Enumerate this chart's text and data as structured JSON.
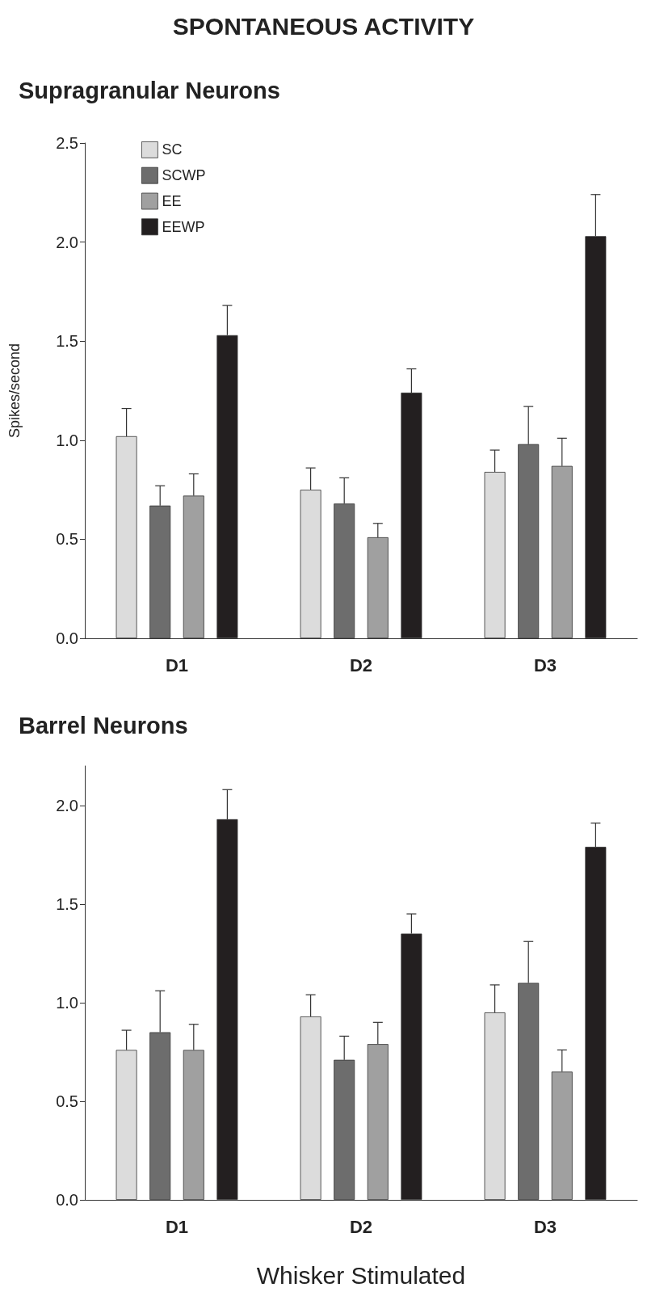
{
  "chart_data": [
    {
      "type": "bar",
      "title": "SPONTANEOUS ACTIVITY",
      "subtitle": "Supragranular Neurons",
      "ylabel": "Spikes/second",
      "categories": [
        "D1",
        "D2",
        "D3"
      ],
      "series": [
        {
          "name": "SC",
          "color": "#dcdcdc",
          "values": [
            1.02,
            0.75,
            0.84
          ],
          "errors": [
            [
              1.02,
              1.16
            ],
            [
              0.75,
              0.86
            ],
            [
              0.84,
              0.95
            ]
          ]
        },
        {
          "name": "SCWP",
          "color": "#6d6d6d",
          "values": [
            0.67,
            0.68,
            0.98
          ],
          "errors": [
            [
              0.67,
              0.77
            ],
            [
              0.68,
              0.81
            ],
            [
              0.98,
              1.17
            ]
          ]
        },
        {
          "name": "EE",
          "color": "#a0a0a0",
          "values": [
            0.72,
            0.51,
            0.87
          ],
          "errors": [
            [
              0.72,
              0.83
            ],
            [
              0.51,
              0.58
            ],
            [
              0.87,
              1.01
            ]
          ]
        },
        {
          "name": "EEWP",
          "color": "#231f20",
          "values": [
            1.53,
            1.24,
            2.03
          ],
          "errors": [
            [
              1.53,
              1.68
            ],
            [
              1.24,
              1.36
            ],
            [
              2.03,
              2.24
            ]
          ]
        }
      ],
      "ylim": [
        0,
        2.5
      ],
      "yticks": [
        {
          "value": 0,
          "label": "0.0"
        },
        {
          "value": 0.5,
          "label": "0.5"
        },
        {
          "value": 1,
          "label": "1.0"
        },
        {
          "value": 1.5,
          "label": "1.5"
        },
        {
          "value": 2,
          "label": "2.0"
        },
        {
          "value": 2.5,
          "label": "2.5"
        }
      ],
      "grid": false,
      "legend": "top left"
    },
    {
      "type": "bar",
      "title": "Barrel Neurons",
      "xlabel": "Whisker Stimulated",
      "categories": [
        "D1",
        "D2",
        "D3"
      ],
      "series": [
        {
          "color": "#dcdcdc",
          "values": [
            0.76,
            0.93,
            0.95
          ],
          "errors": [
            [
              0.76,
              0.86
            ],
            [
              0.93,
              1.04
            ],
            [
              0.95,
              1.09
            ]
          ]
        },
        {
          "color": "#6d6d6d",
          "values": [
            0.85,
            0.71,
            1.1
          ],
          "errors": [
            [
              0.85,
              1.06
            ],
            [
              0.71,
              0.83
            ],
            [
              1.1,
              1.31
            ]
          ]
        },
        {
          "color": "#a0a0a0",
          "values": [
            0.76,
            0.79,
            0.65
          ],
          "errors": [
            [
              0.76,
              0.89
            ],
            [
              0.79,
              0.9
            ],
            [
              0.65,
              0.76
            ]
          ]
        },
        {
          "color": "#231f20",
          "values": [
            1.93,
            1.35,
            1.79
          ],
          "errors": [
            [
              1.93,
              2.08
            ],
            [
              1.35,
              1.45
            ],
            [
              1.79,
              1.91
            ]
          ]
        }
      ],
      "ylim": [
        0,
        2.2
      ],
      "yticks": [
        {
          "value": 0,
          "label": "0.0"
        },
        {
          "value": 0.5,
          "label": "0.5"
        },
        {
          "value": 1,
          "label": "1.0"
        },
        {
          "value": 1.5,
          "label": "1.5"
        },
        {
          "value": 2,
          "label": "2.0"
        }
      ],
      "grid": false,
      "legend": false
    }
  ]
}
